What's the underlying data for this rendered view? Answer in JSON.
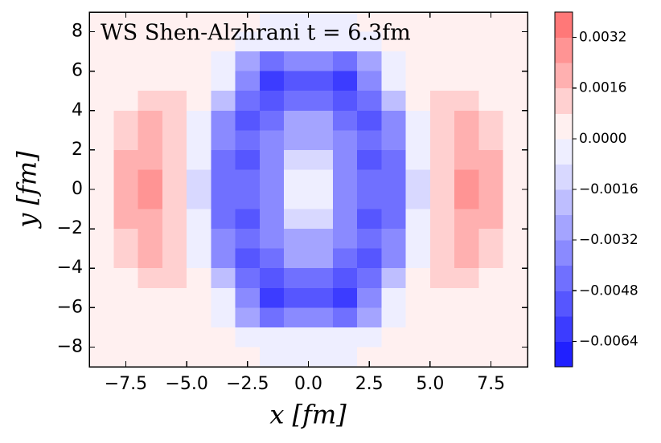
{
  "chart_data": {
    "type": "heatmap",
    "title": "WS  Shen-Alzhrani  t = 6.3fm",
    "xlabel": "x [fm]",
    "ylabel": "y [fm]",
    "xlim": [
      -9,
      9
    ],
    "ylim": [
      -9,
      9
    ],
    "xticks": [
      {
        "value": -7.5,
        "label": "−7.5"
      },
      {
        "value": -5,
        "label": "−5.0"
      },
      {
        "value": -2.5,
        "label": "−2.5"
      },
      {
        "value": 0,
        "label": "0.0"
      },
      2.5,
      {
        "value": 5,
        "label": "5.0"
      },
      7.5
    ],
    "yticks": [
      {
        "value": -8,
        "label": "−8"
      },
      {
        "value": -6,
        "label": "−6"
      },
      {
        "value": -4,
        "label": "−4"
      },
      {
        "value": -2,
        "label": "−2"
      },
      0,
      2,
      4,
      6,
      8
    ],
    "x": [
      -8.5,
      -7.5,
      -6.5,
      -5.5,
      -4.5,
      -3.5,
      -2.5,
      -1.5,
      -0.5,
      0.5,
      1.5,
      2.5,
      3.5,
      4.5,
      5.5,
      6.5,
      7.5,
      8.5
    ],
    "y": [
      8.5,
      7.5,
      6.5,
      5.5,
      4.5,
      3.5,
      2.5,
      1.5,
      0.5,
      -0.5,
      -1.5,
      -2.5,
      -3.5,
      -4.5,
      -5.5,
      -6.5,
      -7.5,
      -8.5
    ],
    "z": [
      [
        0.0003,
        0.0003,
        0.0003,
        0.0003,
        0.0003,
        0.0003,
        0.0003,
        -0.0004,
        -0.0004,
        -0.0004,
        -0.0004,
        0.0003,
        0.0003,
        0.0003,
        0.0003,
        0.0003,
        0.0003,
        0.0003
      ],
      [
        0.0003,
        0.0003,
        0.0003,
        0.0003,
        0.0003,
        0.0003,
        -0.0004,
        -0.0008,
        -0.0008,
        -0.0008,
        -0.0008,
        -0.0004,
        0.0003,
        0.0003,
        0.0003,
        0.0003,
        0.0003,
        0.0003
      ],
      [
        0.0003,
        0.0003,
        0.0003,
        0.0003,
        0.0003,
        -0.0004,
        -0.0025,
        -0.0045,
        -0.004,
        -0.004,
        -0.0045,
        -0.0025,
        -0.0004,
        0.0003,
        0.0003,
        0.0003,
        0.0003,
        0.0003
      ],
      [
        0.0003,
        0.0003,
        0.0003,
        0.0004,
        0.0003,
        -0.0008,
        -0.004,
        -0.0058,
        -0.0055,
        -0.0055,
        -0.0058,
        -0.004,
        -0.0008,
        0.0003,
        0.0004,
        0.0003,
        0.0003,
        0.0003
      ],
      [
        0.0003,
        0.0005,
        0.0012,
        0.0008,
        0.0002,
        -0.002,
        -0.0045,
        -0.005,
        -0.0045,
        -0.0045,
        -0.005,
        -0.0045,
        -0.002,
        0.0002,
        0.0008,
        0.0012,
        0.0005,
        0.0003
      ],
      [
        0.0003,
        0.0008,
        0.0016,
        0.001,
        -0.0002,
        -0.0035,
        -0.005,
        -0.0042,
        -0.003,
        -0.003,
        -0.0042,
        -0.005,
        -0.0035,
        -0.0002,
        0.001,
        0.0016,
        0.0008,
        0.0003
      ],
      [
        0.0003,
        0.0012,
        0.0018,
        0.001,
        -0.0005,
        -0.004,
        -0.0048,
        -0.004,
        -0.0025,
        -0.0025,
        -0.004,
        -0.0048,
        -0.004,
        -0.0005,
        0.001,
        0.0018,
        0.0012,
        0.0003
      ],
      [
        0.0003,
        0.0016,
        0.002,
        0.0008,
        -0.0008,
        -0.0045,
        -0.005,
        -0.0038,
        -0.0012,
        -0.0012,
        -0.0038,
        -0.005,
        -0.0045,
        -0.0008,
        0.0008,
        0.002,
        0.0016,
        0.0003
      ],
      [
        0.0003,
        0.0018,
        0.0024,
        0.0008,
        -0.001,
        -0.0045,
        -0.0048,
        -0.0035,
        -0.0002,
        -0.0002,
        -0.0035,
        -0.0048,
        -0.0045,
        -0.001,
        0.0008,
        0.0024,
        0.0018,
        0.0003
      ],
      [
        0.0003,
        0.0018,
        0.0024,
        0.0008,
        -0.001,
        -0.0045,
        -0.0048,
        -0.0035,
        -0.0002,
        -0.0002,
        -0.0035,
        -0.0048,
        -0.0045,
        -0.001,
        0.0008,
        0.0024,
        0.0018,
        0.0003
      ],
      [
        0.0003,
        0.0016,
        0.002,
        0.0008,
        -0.0008,
        -0.0045,
        -0.005,
        -0.0038,
        -0.0012,
        -0.0012,
        -0.0038,
        -0.005,
        -0.0045,
        -0.0008,
        0.0008,
        0.002,
        0.0016,
        0.0003
      ],
      [
        0.0003,
        0.0012,
        0.0018,
        0.001,
        -0.0005,
        -0.004,
        -0.0048,
        -0.004,
        -0.0025,
        -0.0025,
        -0.004,
        -0.0048,
        -0.004,
        -0.0005,
        0.001,
        0.0018,
        0.0012,
        0.0003
      ],
      [
        0.0003,
        0.0008,
        0.0016,
        0.001,
        -0.0002,
        -0.0035,
        -0.005,
        -0.0042,
        -0.003,
        -0.003,
        -0.0042,
        -0.005,
        -0.0035,
        -0.0002,
        0.001,
        0.0016,
        0.0008,
        0.0003
      ],
      [
        0.0003,
        0.0005,
        0.0012,
        0.0008,
        0.0002,
        -0.002,
        -0.0045,
        -0.005,
        -0.0045,
        -0.0045,
        -0.005,
        -0.0045,
        -0.002,
        0.0002,
        0.0008,
        0.0012,
        0.0005,
        0.0003
      ],
      [
        0.0003,
        0.0003,
        0.0003,
        0.0004,
        0.0003,
        -0.0008,
        -0.004,
        -0.0058,
        -0.0055,
        -0.0055,
        -0.0058,
        -0.004,
        -0.0008,
        0.0003,
        0.0004,
        0.0003,
        0.0003,
        0.0003
      ],
      [
        0.0003,
        0.0003,
        0.0003,
        0.0003,
        0.0003,
        -0.0004,
        -0.0025,
        -0.0045,
        -0.004,
        -0.004,
        -0.0045,
        -0.0025,
        -0.0004,
        0.0003,
        0.0003,
        0.0003,
        0.0003,
        0.0003
      ],
      [
        0.0003,
        0.0003,
        0.0003,
        0.0003,
        0.0003,
        0.0003,
        -0.0004,
        -0.0008,
        -0.0008,
        -0.0008,
        -0.0008,
        -0.0004,
        0.0003,
        0.0003,
        0.0003,
        0.0003,
        0.0003,
        0.0003
      ],
      [
        0.0003,
        0.0003,
        0.0003,
        0.0003,
        0.0003,
        0.0003,
        0.0003,
        -0.0004,
        -0.0004,
        -0.0004,
        -0.0004,
        0.0003,
        0.0003,
        0.0003,
        0.0003,
        0.0003,
        0.0003,
        0.0003
      ]
    ],
    "levels": [
      -0.0072,
      -0.0064,
      -0.0056,
      -0.0048,
      -0.004,
      -0.0032,
      -0.0024,
      -0.0016,
      -0.0008,
      0,
      0.0008,
      0.0016,
      0.0024,
      0.0032,
      0.004
    ],
    "colors": [
      "#2020ff",
      "#3c3cff",
      "#5656ff",
      "#7070ff",
      "#8a8aff",
      "#a4a4ff",
      "#bebeff",
      "#d8d8ff",
      "#eeeeff",
      "#fff0f0",
      "#ffd0d0",
      "#ffb0b0",
      "#ff9494",
      "#ff7878"
    ],
    "cticks": [
      {
        "value": -0.0064,
        "label": "−0.0064"
      },
      {
        "value": -0.0048,
        "label": "−0.0048"
      },
      {
        "value": -0.0032,
        "label": "−0.0032"
      },
      {
        "value": -0.0016,
        "label": "−0.0016"
      },
      {
        "value": 0,
        "label": "0.0000"
      },
      0.0016,
      0.0032
    ]
  }
}
